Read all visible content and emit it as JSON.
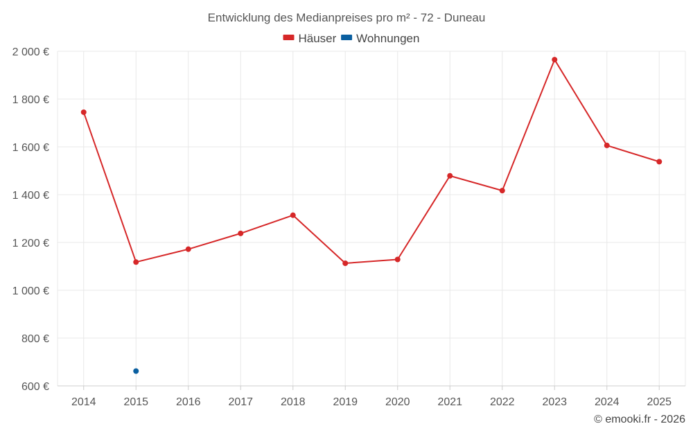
{
  "chart_data": {
    "type": "line",
    "title": "Entwicklung des Medianpreises pro m² - 72 - Duneau",
    "categories": [
      "2014",
      "2015",
      "2016",
      "2017",
      "2018",
      "2019",
      "2020",
      "2021",
      "2022",
      "2023",
      "2024",
      "2025"
    ],
    "series": [
      {
        "name": "Häuser",
        "color": "#d62728",
        "values": [
          1745,
          1118,
          1172,
          1238,
          1314,
          1113,
          1129,
          1479,
          1417,
          1965,
          1606,
          1538
        ]
      },
      {
        "name": "Wohnungen",
        "color": "#0a5fa0",
        "values": [
          null,
          662,
          null,
          null,
          null,
          null,
          null,
          null,
          null,
          null,
          null,
          null
        ]
      }
    ],
    "ylim": [
      600,
      2000
    ],
    "yticks": [
      600,
      800,
      1000,
      1200,
      1400,
      1600,
      1800,
      2000
    ],
    "ytick_labels": [
      "600 €",
      "800 €",
      "1 000 €",
      "1 200 €",
      "1 400 €",
      "1 600 €",
      "1 800 €",
      "2 000 €"
    ],
    "xlabel": "",
    "ylabel": "",
    "grid": true,
    "legend_position": "top-center",
    "credit": "© emooki.fr - 2026"
  }
}
